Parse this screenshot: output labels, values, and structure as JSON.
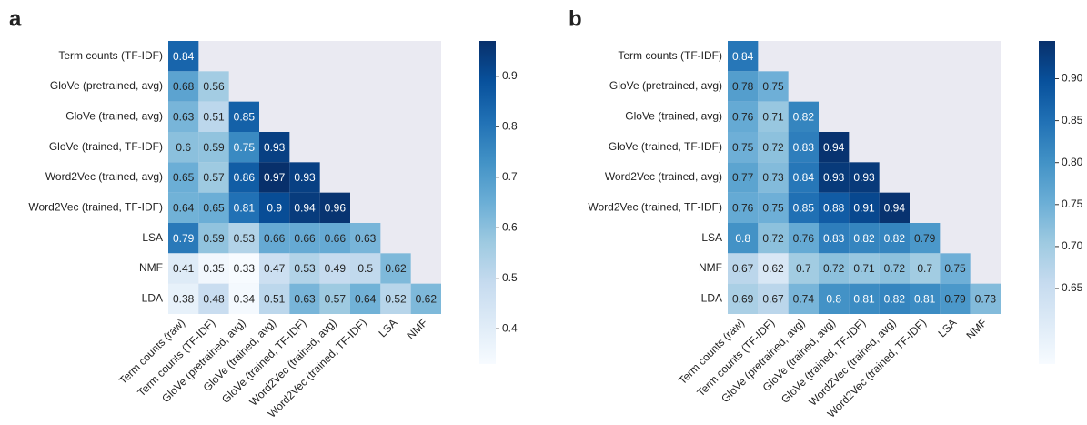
{
  "chart_data": [
    {
      "type": "heatmap",
      "label": "a",
      "colormap": "Blues",
      "rows": [
        "Term counts (TF-IDF)",
        "GloVe (pretrained, avg)",
        "GloVe (trained, avg)",
        "GloVe (trained, TF-IDF)",
        "Word2Vec (trained, avg)",
        "Word2Vec (trained, TF-IDF)",
        "LSA",
        "NMF",
        "LDA"
      ],
      "columns": [
        "Term counts (raw)",
        "Term counts (TF-IDF)",
        "GloVe (pretrained, avg)",
        "GloVe (trained, avg)",
        "GloVe (trained, TF-IDF)",
        "Word2Vec (trained, avg)",
        "Word2Vec (trained, TF-IDF)",
        "LSA",
        "NMF"
      ],
      "values": [
        [
          0.84,
          null,
          null,
          null,
          null,
          null,
          null,
          null,
          null
        ],
        [
          0.68,
          0.56,
          null,
          null,
          null,
          null,
          null,
          null,
          null
        ],
        [
          0.63,
          0.51,
          0.85,
          null,
          null,
          null,
          null,
          null,
          null
        ],
        [
          0.6,
          0.59,
          0.75,
          0.93,
          null,
          null,
          null,
          null,
          null
        ],
        [
          0.65,
          0.57,
          0.86,
          0.97,
          0.93,
          null,
          null,
          null,
          null
        ],
        [
          0.64,
          0.65,
          0.81,
          0.9,
          0.94,
          0.96,
          null,
          null,
          null
        ],
        [
          0.79,
          0.59,
          0.53,
          0.66,
          0.66,
          0.66,
          0.63,
          null,
          null
        ],
        [
          0.41,
          0.35,
          0.33,
          0.47,
          0.53,
          0.49,
          0.5,
          0.62,
          null
        ],
        [
          0.38,
          0.48,
          0.34,
          0.51,
          0.63,
          0.57,
          0.64,
          0.52,
          0.62
        ]
      ],
      "clim": [
        0.33,
        0.97
      ],
      "cticks": [
        0.4,
        0.5,
        0.6,
        0.7,
        0.8,
        0.9
      ]
    },
    {
      "type": "heatmap",
      "label": "b",
      "colormap": "Blues",
      "rows": [
        "Term counts (TF-IDF)",
        "GloVe (pretrained, avg)",
        "GloVe (trained, avg)",
        "GloVe (trained, TF-IDF)",
        "Word2Vec (trained, avg)",
        "Word2Vec (trained, TF-IDF)",
        "LSA",
        "NMF",
        "LDA"
      ],
      "columns": [
        "Term counts (raw)",
        "Term counts (TF-IDF)",
        "GloVe (pretrained, avg)",
        "GloVe (trained, avg)",
        "GloVe (trained, TF-IDF)",
        "Word2Vec (trained, avg)",
        "Word2Vec (trained, TF-IDF)",
        "LSA",
        "NMF"
      ],
      "values": [
        [
          0.84,
          null,
          null,
          null,
          null,
          null,
          null,
          null,
          null
        ],
        [
          0.78,
          0.75,
          null,
          null,
          null,
          null,
          null,
          null,
          null
        ],
        [
          0.76,
          0.71,
          0.82,
          null,
          null,
          null,
          null,
          null,
          null
        ],
        [
          0.75,
          0.72,
          0.83,
          0.94,
          null,
          null,
          null,
          null,
          null
        ],
        [
          0.77,
          0.73,
          0.84,
          0.93,
          0.93,
          null,
          null,
          null,
          null
        ],
        [
          0.76,
          0.75,
          0.85,
          0.88,
          0.91,
          0.94,
          null,
          null,
          null
        ],
        [
          0.8,
          0.72,
          0.76,
          0.83,
          0.82,
          0.82,
          0.79,
          null,
          null
        ],
        [
          0.67,
          0.62,
          0.7,
          0.72,
          0.71,
          0.72,
          0.7,
          0.75,
          null
        ],
        [
          0.69,
          0.67,
          0.74,
          0.8,
          0.81,
          0.82,
          0.81,
          0.79,
          0.73
        ]
      ],
      "clim": [
        0.56,
        0.945
      ],
      "cticks": [
        0.65,
        {
          "value": 0.7,
          "label": "0.70"
        },
        0.75,
        {
          "value": 0.8,
          "label": "0.80"
        },
        0.85,
        {
          "value": 0.9,
          "label": "0.90"
        }
      ]
    }
  ]
}
